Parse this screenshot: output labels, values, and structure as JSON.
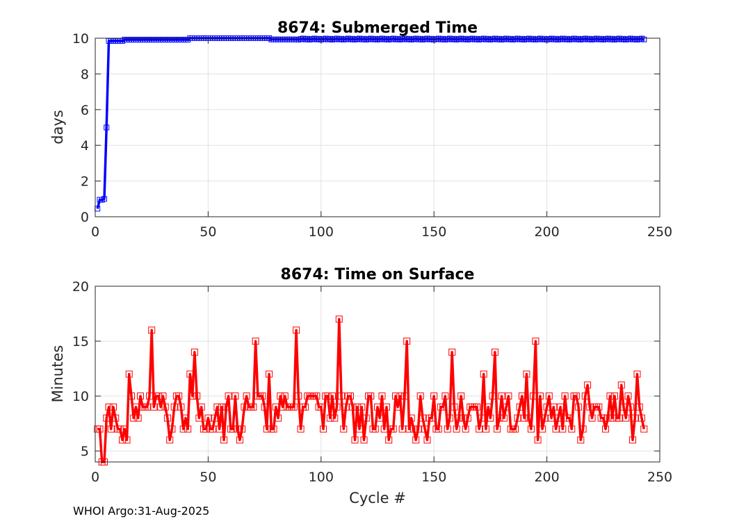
{
  "footer": "WHOI Argo:31-Aug-2025",
  "chart_data": [
    {
      "type": "line",
      "title": "8674: Submerged Time",
      "xlabel": "",
      "ylabel": "days",
      "xlim": [
        0,
        250
      ],
      "ylim": [
        0,
        10
      ],
      "xticks": [
        "0",
        "50",
        "100",
        "150",
        "200",
        "250"
      ],
      "yticks": [
        "0",
        "2",
        "4",
        "6",
        "8",
        "10"
      ],
      "xtick_values": [
        0,
        50,
        100,
        150,
        200,
        250
      ],
      "ytick_values": [
        0,
        2,
        4,
        6,
        8,
        10
      ],
      "grid": true,
      "color": "#0000ff",
      "marker": "square",
      "series": [
        {
          "name": "Submerged Time",
          "x": [],
          "values": []
        }
      ]
    },
    {
      "type": "line",
      "title": "8674: Time on Surface",
      "xlabel": "Cycle #",
      "ylabel": "Minutes",
      "xlim": [
        0,
        250
      ],
      "ylim": [
        4,
        20
      ],
      "xticks": [
        "0",
        "50",
        "100",
        "150",
        "200",
        "250"
      ],
      "yticks": [
        "5",
        "10",
        "15",
        "20"
      ],
      "xtick_values": [
        0,
        50,
        100,
        150,
        200,
        250
      ],
      "ytick_values": [
        5,
        10,
        15,
        20
      ],
      "grid": true,
      "color": "#ff0000",
      "marker": "square",
      "series": [
        {
          "name": "Time on Surface",
          "x": [],
          "values": []
        }
      ]
    }
  ]
}
